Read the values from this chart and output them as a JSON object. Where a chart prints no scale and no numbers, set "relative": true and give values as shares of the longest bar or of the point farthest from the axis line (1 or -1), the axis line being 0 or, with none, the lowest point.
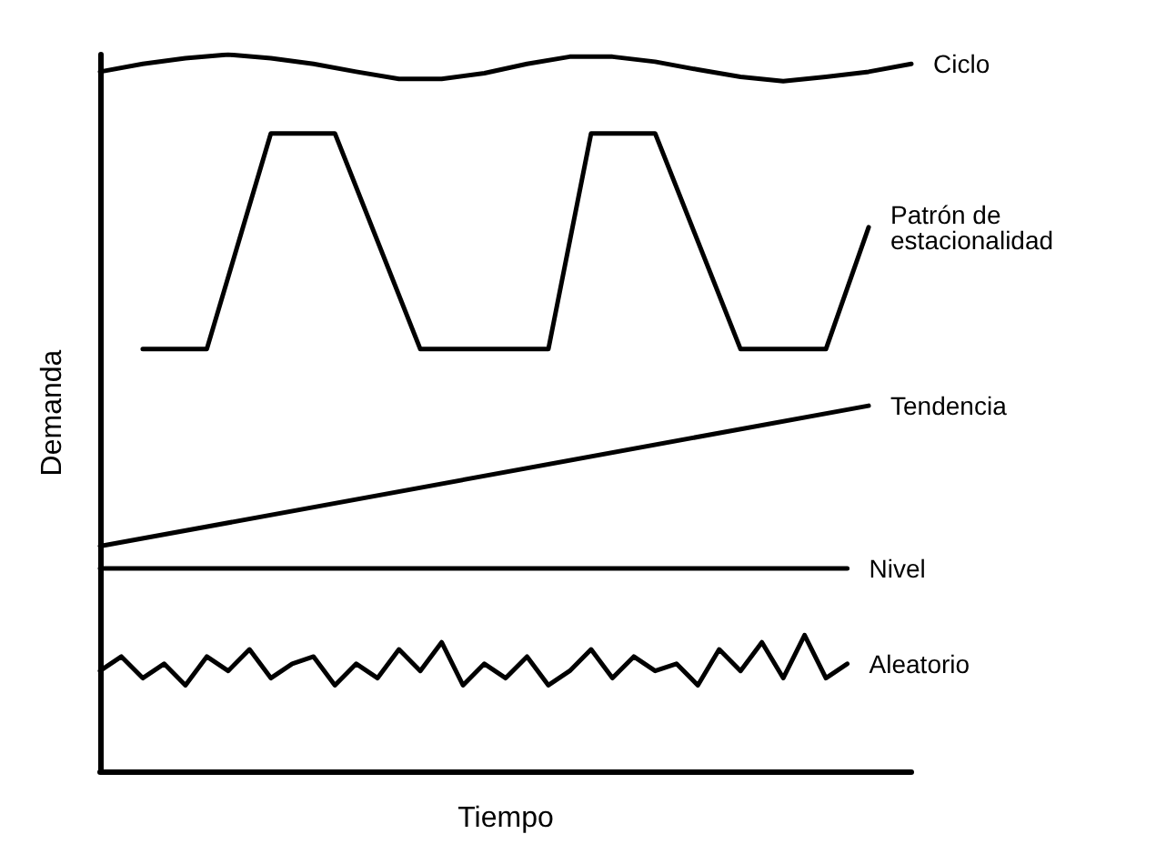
{
  "chart_data": {
    "type": "line",
    "relative": true,
    "xlabel": "Tiempo",
    "ylabel": "Demanda",
    "grid": false,
    "legend": false,
    "marker": "none",
    "line_style": "solid",
    "categories": [
      null,
      null,
      null,
      null,
      null,
      null,
      null,
      null,
      null,
      null,
      null,
      null,
      null,
      null,
      null,
      null,
      null,
      null,
      null,
      null,
      null,
      null,
      null,
      null,
      null,
      null,
      null,
      null,
      null,
      null,
      null,
      null,
      null,
      null,
      null,
      null,
      null,
      null,
      null
    ],
    "series": [
      {
        "name": "Ciclo",
        "color": "#000000",
        "values": [
          0.976,
          null,
          0.987,
          null,
          0.995,
          null,
          1,
          null,
          0.995,
          null,
          0.987,
          null,
          0.976,
          null,
          0.966,
          null,
          0.966,
          null,
          0.974,
          null,
          0.987,
          null,
          0.997,
          null,
          0.997,
          null,
          0.99,
          null,
          0.979,
          null,
          0.969,
          null,
          0.963,
          null,
          0.969,
          null,
          0.976,
          null,
          0.987
        ]
      },
      {
        "name": "Patrón de estacionalidad",
        "color": "#000000",
        "values": [
          null,
          null,
          0.589,
          null,
          null,
          0.589,
          null,
          null,
          0.89,
          null,
          null,
          0.89,
          null,
          null,
          null,
          0.589,
          null,
          null,
          null,
          null,
          null,
          0.589,
          null,
          0.89,
          null,
          null,
          0.89,
          null,
          null,
          null,
          0.589,
          null,
          null,
          null,
          0.589,
          null,
          0.759,
          null,
          null
        ]
      },
      {
        "name": "Tendencia",
        "color": "#000000",
        "values": [
          0.314,
          null,
          null,
          null,
          null,
          null,
          null,
          null,
          null,
          null,
          null,
          null,
          null,
          null,
          null,
          null,
          null,
          null,
          null,
          null,
          null,
          null,
          null,
          null,
          null,
          null,
          null,
          null,
          null,
          null,
          null,
          null,
          null,
          null,
          null,
          null,
          0.51,
          null,
          null
        ]
      },
      {
        "name": "Nivel",
        "color": "#000000",
        "values": [
          0.283,
          null,
          null,
          null,
          null,
          null,
          null,
          null,
          null,
          null,
          null,
          null,
          null,
          null,
          null,
          null,
          null,
          null,
          null,
          null,
          null,
          null,
          null,
          null,
          null,
          null,
          null,
          null,
          null,
          null,
          null,
          null,
          null,
          null,
          null,
          0.283,
          null,
          null,
          null
        ]
      },
      {
        "name": "Aleatorio",
        "color": "#000000",
        "values": [
          0.14,
          0.16,
          0.13,
          0.15,
          0.12,
          0.16,
          0.14,
          0.17,
          0.13,
          0.15,
          0.16,
          0.12,
          0.15,
          0.13,
          0.17,
          0.14,
          0.18,
          0.12,
          0.15,
          0.13,
          0.16,
          0.12,
          0.14,
          0.17,
          0.13,
          0.16,
          0.14,
          0.15,
          0.12,
          0.17,
          0.14,
          0.18,
          0.13,
          0.19,
          0.13,
          0.15,
          null,
          null,
          null
        ]
      }
    ]
  }
}
